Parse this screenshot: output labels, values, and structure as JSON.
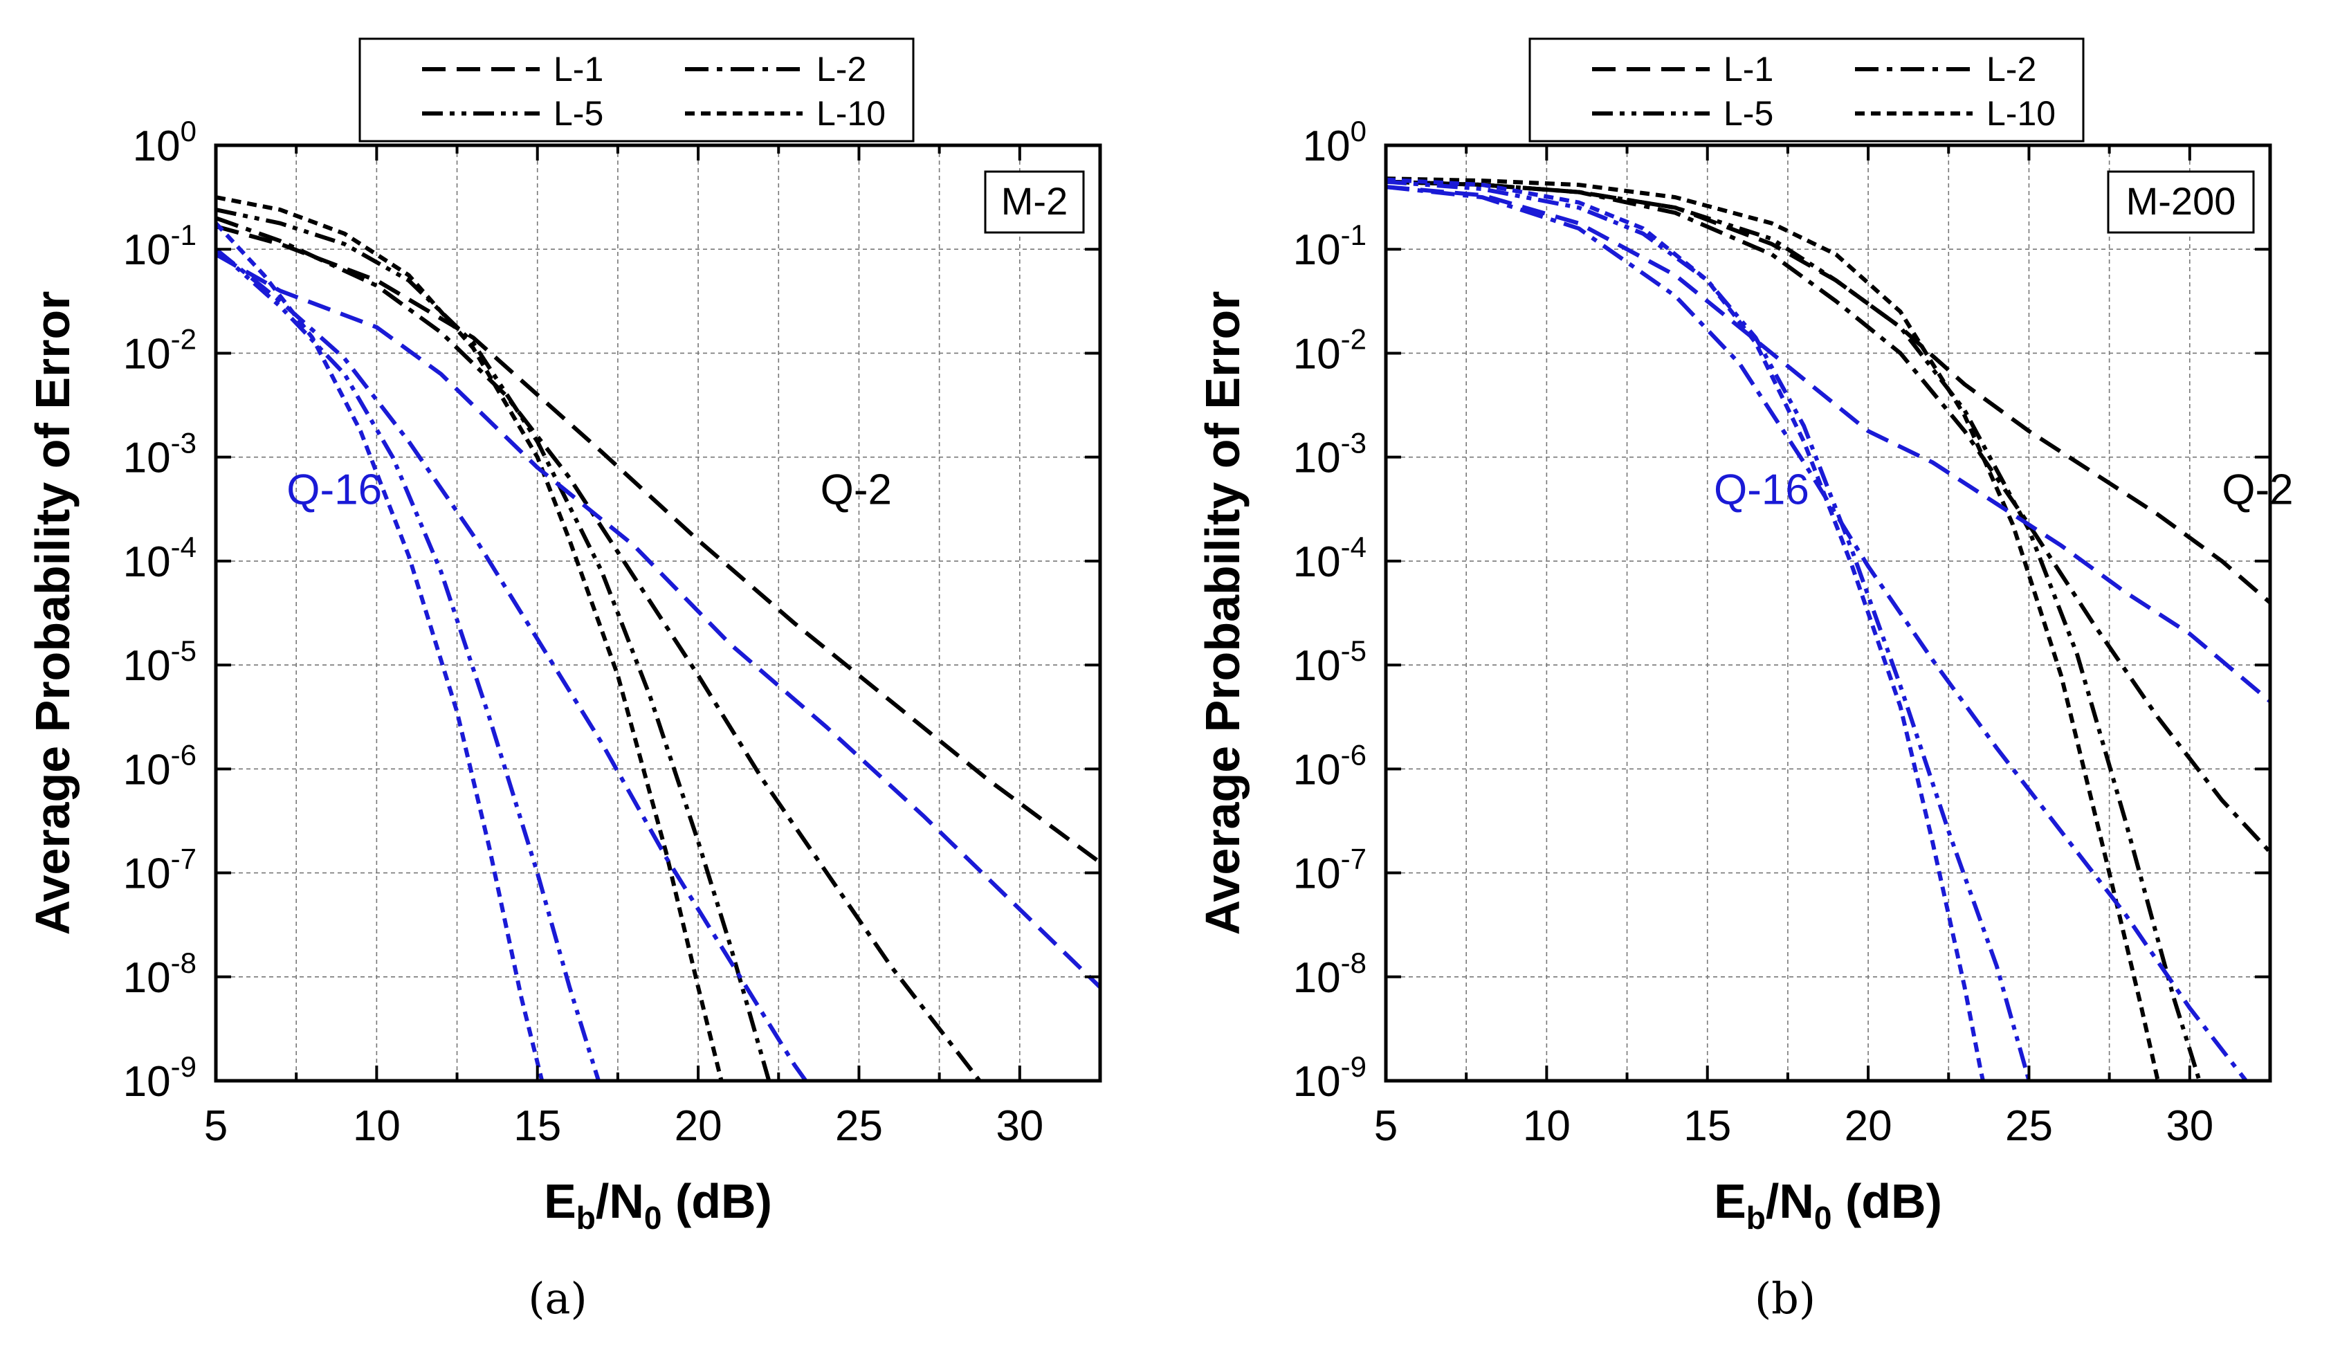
{
  "chart_data": [
    {
      "type": "line",
      "panel": "a",
      "caption": "(a)",
      "annotation_box": "M-2",
      "xlabel": {
        "main": "E",
        "sub1": "b",
        "mid": "/N",
        "sub2": "0",
        "tail": " (dB)"
      },
      "ylabel": "Average Probability of Error",
      "xlim": [
        5,
        32.5
      ],
      "ylim_log10": [
        -9,
        0
      ],
      "xticks": [
        5,
        10,
        15,
        20,
        25,
        30
      ],
      "yticks": [
        {
          "base": "10",
          "exp": "0"
        },
        {
          "base": "10",
          "exp": "-1"
        },
        {
          "base": "10",
          "exp": "-2"
        },
        {
          "base": "10",
          "exp": "-3"
        },
        {
          "base": "10",
          "exp": "-4"
        },
        {
          "base": "10",
          "exp": "-5"
        },
        {
          "base": "10",
          "exp": "-6"
        },
        {
          "base": "10",
          "exp": "-7"
        },
        {
          "base": "10",
          "exp": "-8"
        },
        {
          "base": "10",
          "exp": "-9"
        }
      ],
      "grid": true,
      "legend": {
        "placement": "top",
        "entries": [
          {
            "label": "L-1",
            "style": "dash"
          },
          {
            "label": "L-2",
            "style": "dashdot"
          },
          {
            "label": "L-5",
            "style": "dashdotdot"
          },
          {
            "label": "L-10",
            "style": "shortdash"
          }
        ]
      },
      "group_labels": [
        {
          "text": "Q-16",
          "color": "#1a1ad6",
          "x": 7.2,
          "log10y": -3.45
        },
        {
          "text": "Q-2",
          "color": "#000000",
          "x": 23.8,
          "log10y": -3.45
        }
      ],
      "series": [
        {
          "name": "Q-2 L-1",
          "color": "#000000",
          "style": "dash",
          "x": [
            5,
            7,
            10,
            13,
            15,
            17,
            20,
            23,
            26,
            29,
            32.5
          ],
          "log10y": [
            -0.78,
            -0.95,
            -1.3,
            -1.85,
            -2.4,
            -2.95,
            -3.8,
            -4.6,
            -5.35,
            -6.1,
            -6.9
          ]
        },
        {
          "name": "Q-2 L-2",
          "color": "#000000",
          "style": "dashdot",
          "x": [
            5,
            7,
            10,
            12,
            14,
            16,
            18,
            20,
            22,
            24,
            26,
            28,
            29.5
          ],
          "log10y": [
            -0.7,
            -0.92,
            -1.35,
            -1.8,
            -2.4,
            -3.2,
            -4.15,
            -5.1,
            -6.1,
            -7.0,
            -7.9,
            -8.7,
            -9.3
          ]
        },
        {
          "name": "Q-2 L-5",
          "color": "#000000",
          "style": "dashdotdot",
          "x": [
            5,
            7,
            9,
            11,
            13,
            15,
            17,
            18.5,
            20,
            21,
            22.2,
            23
          ],
          "log10y": [
            -0.62,
            -0.75,
            -0.95,
            -1.3,
            -1.9,
            -2.85,
            -4.1,
            -5.3,
            -6.7,
            -7.7,
            -9.0,
            -9.6
          ]
        },
        {
          "name": "Q-2 L-10",
          "color": "#000000",
          "style": "shortdash",
          "x": [
            5,
            7,
            9,
            11,
            13,
            15,
            16,
            17.5,
            19,
            20,
            20.8,
            21.3
          ],
          "log10y": [
            -0.5,
            -0.62,
            -0.85,
            -1.25,
            -1.95,
            -3.0,
            -3.8,
            -5.1,
            -6.8,
            -8.1,
            -9.1,
            -9.6
          ]
        },
        {
          "name": "Q-16 L-1",
          "color": "#1a1ad6",
          "style": "dash",
          "x": [
            5,
            7,
            10,
            12,
            15,
            18,
            21,
            24,
            27,
            30,
            32.5
          ],
          "log10y": [
            -1.05,
            -1.4,
            -1.75,
            -2.2,
            -3.1,
            -3.85,
            -4.8,
            -5.6,
            -6.45,
            -7.35,
            -8.1
          ]
        },
        {
          "name": "Q-16 L-2",
          "color": "#1a1ad6",
          "style": "dashdot",
          "x": [
            5,
            7,
            9,
            11,
            13,
            15,
            17,
            19,
            21,
            23,
            24.5
          ],
          "log10y": [
            -1.0,
            -1.5,
            -2.05,
            -2.85,
            -3.75,
            -4.75,
            -5.75,
            -6.85,
            -7.85,
            -8.85,
            -9.5
          ]
        },
        {
          "name": "Q-16 L-5",
          "color": "#1a1ad6",
          "style": "dashdotdot",
          "x": [
            5,
            7,
            9,
            10.5,
            12,
            13.5,
            15,
            16,
            17,
            17.5
          ],
          "log10y": [
            -1.0,
            -1.55,
            -2.2,
            -3.0,
            -4.1,
            -5.5,
            -7.0,
            -8.1,
            -9.1,
            -9.6
          ]
        },
        {
          "name": "Q-16 L-10",
          "color": "#1a1ad6",
          "style": "shortdash",
          "x": [
            5,
            6.5,
            8,
            9.5,
            11,
            12.5,
            13.5,
            14.5,
            15.3,
            15.8
          ],
          "log10y": [
            -0.75,
            -1.25,
            -1.85,
            -2.75,
            -3.95,
            -5.45,
            -6.75,
            -8.2,
            -9.2,
            -9.7
          ]
        }
      ]
    },
    {
      "type": "line",
      "panel": "b",
      "caption": "(b)",
      "annotation_box": "M-200",
      "xlabel": {
        "main": "E",
        "sub1": "b",
        "mid": "/N",
        "sub2": "0",
        "tail": " (dB)"
      },
      "ylabel": "Average Probability of Error",
      "xlim": [
        5,
        32.5
      ],
      "ylim_log10": [
        -9,
        0
      ],
      "xticks": [
        5,
        10,
        15,
        20,
        25,
        30
      ],
      "yticks": [
        {
          "base": "10",
          "exp": "0"
        },
        {
          "base": "10",
          "exp": "-1"
        },
        {
          "base": "10",
          "exp": "-2"
        },
        {
          "base": "10",
          "exp": "-3"
        },
        {
          "base": "10",
          "exp": "-4"
        },
        {
          "base": "10",
          "exp": "-5"
        },
        {
          "base": "10",
          "exp": "-6"
        },
        {
          "base": "10",
          "exp": "-7"
        },
        {
          "base": "10",
          "exp": "-8"
        },
        {
          "base": "10",
          "exp": "-9"
        }
      ],
      "grid": true,
      "legend": {
        "placement": "top",
        "entries": [
          {
            "label": "L-1",
            "style": "dash"
          },
          {
            "label": "L-2",
            "style": "dashdot"
          },
          {
            "label": "L-5",
            "style": "dashdotdot"
          },
          {
            "label": "L-10",
            "style": "shortdash"
          }
        ]
      },
      "group_labels": [
        {
          "text": "Q-16",
          "color": "#1a1ad6",
          "x": 15.2,
          "log10y": -3.45
        },
        {
          "text": "Q-2",
          "color": "#000000",
          "x": 31.0,
          "log10y": -3.45
        }
      ],
      "series": [
        {
          "name": "Q-2 L-1",
          "color": "#000000",
          "style": "dash",
          "x": [
            5,
            8,
            11,
            14,
            17,
            19,
            21,
            23,
            25,
            27,
            29,
            31,
            32.5
          ],
          "log10y": [
            -0.35,
            -0.38,
            -0.45,
            -0.6,
            -0.95,
            -1.3,
            -1.75,
            -2.3,
            -2.75,
            -3.15,
            -3.55,
            -4.0,
            -4.4
          ]
        },
        {
          "name": "Q-2 L-2",
          "color": "#000000",
          "style": "dashdot",
          "x": [
            5,
            8,
            11,
            14,
            17,
            19,
            21,
            23,
            25,
            27,
            29,
            31,
            32.5
          ],
          "log10y": [
            -0.35,
            -0.38,
            -0.45,
            -0.65,
            -1.05,
            -1.5,
            -2.0,
            -2.75,
            -3.65,
            -4.6,
            -5.5,
            -6.3,
            -6.8
          ]
        },
        {
          "name": "Q-2 L-5",
          "color": "#000000",
          "style": "dashdotdot",
          "x": [
            5,
            8,
            11,
            14,
            17,
            19,
            21,
            23,
            25,
            26.5,
            28,
            29.5,
            30.5,
            31
          ],
          "log10y": [
            -0.35,
            -0.38,
            -0.45,
            -0.6,
            -0.9,
            -1.3,
            -1.75,
            -2.55,
            -3.7,
            -4.9,
            -6.5,
            -8.2,
            -9.2,
            -9.6
          ]
        },
        {
          "name": "Q-2 L-10",
          "color": "#000000",
          "style": "shortdash",
          "x": [
            5,
            8,
            11,
            14,
            17,
            19,
            21,
            23,
            24.5,
            26,
            27.5,
            28.5,
            29.3
          ],
          "log10y": [
            -0.32,
            -0.34,
            -0.38,
            -0.5,
            -0.75,
            -1.05,
            -1.6,
            -2.6,
            -3.65,
            -5.1,
            -7.0,
            -8.3,
            -9.4
          ]
        },
        {
          "name": "Q-16 L-1",
          "color": "#1a1ad6",
          "style": "dash",
          "x": [
            5,
            8,
            11,
            14,
            16,
            18,
            20,
            22,
            24,
            26,
            28,
            30,
            32.5
          ],
          "log10y": [
            -0.4,
            -0.48,
            -0.75,
            -1.25,
            -1.75,
            -2.25,
            -2.75,
            -3.05,
            -3.45,
            -3.85,
            -4.3,
            -4.7,
            -5.35
          ]
        },
        {
          "name": "Q-16 L-2",
          "color": "#1a1ad6",
          "style": "dashdot",
          "x": [
            5,
            8,
            11,
            14,
            16,
            18,
            20,
            22,
            24,
            26,
            28,
            30,
            32
          ],
          "log10y": [
            -0.4,
            -0.5,
            -0.8,
            -1.45,
            -2.1,
            -3.05,
            -4.05,
            -4.95,
            -5.8,
            -6.6,
            -7.4,
            -8.3,
            -9.1
          ]
        },
        {
          "name": "Q-16 L-5",
          "color": "#1a1ad6",
          "style": "dashdotdot",
          "x": [
            5,
            8,
            11,
            13,
            15,
            16.5,
            18,
            19.5,
            21,
            22.5,
            24,
            25,
            25.5
          ],
          "log10y": [
            -0.35,
            -0.42,
            -0.6,
            -0.85,
            -1.3,
            -1.85,
            -2.7,
            -3.9,
            -5.2,
            -6.6,
            -7.9,
            -9.0,
            -9.6
          ]
        },
        {
          "name": "Q-16 L-10",
          "color": "#1a1ad6",
          "style": "shortdash",
          "x": [
            5,
            8,
            11,
            13,
            15,
            16.5,
            18,
            19.5,
            21,
            22,
            23,
            23.5,
            24
          ],
          "log10y": [
            -0.33,
            -0.38,
            -0.55,
            -0.8,
            -1.3,
            -1.9,
            -2.85,
            -4.05,
            -5.4,
            -6.7,
            -8.1,
            -8.9,
            -9.6
          ]
        }
      ]
    }
  ]
}
